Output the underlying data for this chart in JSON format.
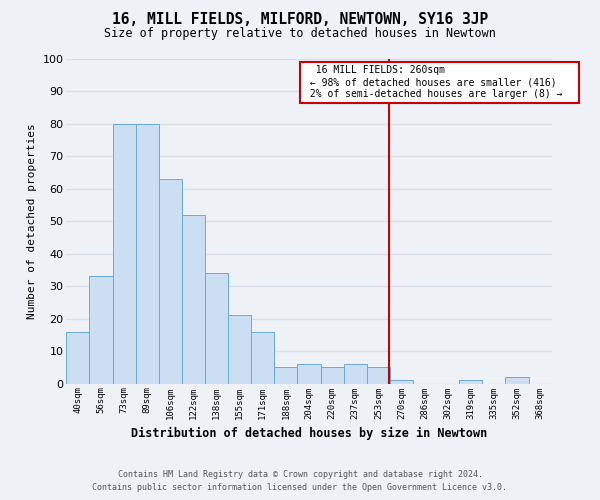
{
  "title": "16, MILL FIELDS, MILFORD, NEWTOWN, SY16 3JP",
  "subtitle": "Size of property relative to detached houses in Newtown",
  "xlabel": "Distribution of detached houses by size in Newtown",
  "ylabel": "Number of detached properties",
  "bar_labels": [
    "40sqm",
    "56sqm",
    "73sqm",
    "89sqm",
    "106sqm",
    "122sqm",
    "138sqm",
    "155sqm",
    "171sqm",
    "188sqm",
    "204sqm",
    "220sqm",
    "237sqm",
    "253sqm",
    "270sqm",
    "286sqm",
    "302sqm",
    "319sqm",
    "335sqm",
    "352sqm",
    "368sqm"
  ],
  "bar_values": [
    16,
    33,
    80,
    80,
    63,
    52,
    34,
    21,
    16,
    5,
    6,
    5,
    6,
    5,
    1,
    0,
    0,
    1,
    0,
    2,
    0
  ],
  "bar_color": "#ccdff2",
  "bar_edge_color": "#6aaad4",
  "ylim": [
    0,
    100
  ],
  "yticks": [
    0,
    10,
    20,
    30,
    40,
    50,
    60,
    70,
    80,
    90,
    100
  ],
  "vertical_line_color": "#cc0000",
  "annotation_title": "16 MILL FIELDS: 260sqm",
  "annotation_line1": "← 98% of detached houses are smaller (416)",
  "annotation_line2": "2% of semi-detached houses are larger (8) →",
  "annotation_box_edge": "#cc0000",
  "footer_line1": "Contains HM Land Registry data © Crown copyright and database right 2024.",
  "footer_line2": "Contains public sector information licensed under the Open Government Licence v3.0.",
  "bg_color": "#eef2f7",
  "grid_color": "#d8e0ea"
}
